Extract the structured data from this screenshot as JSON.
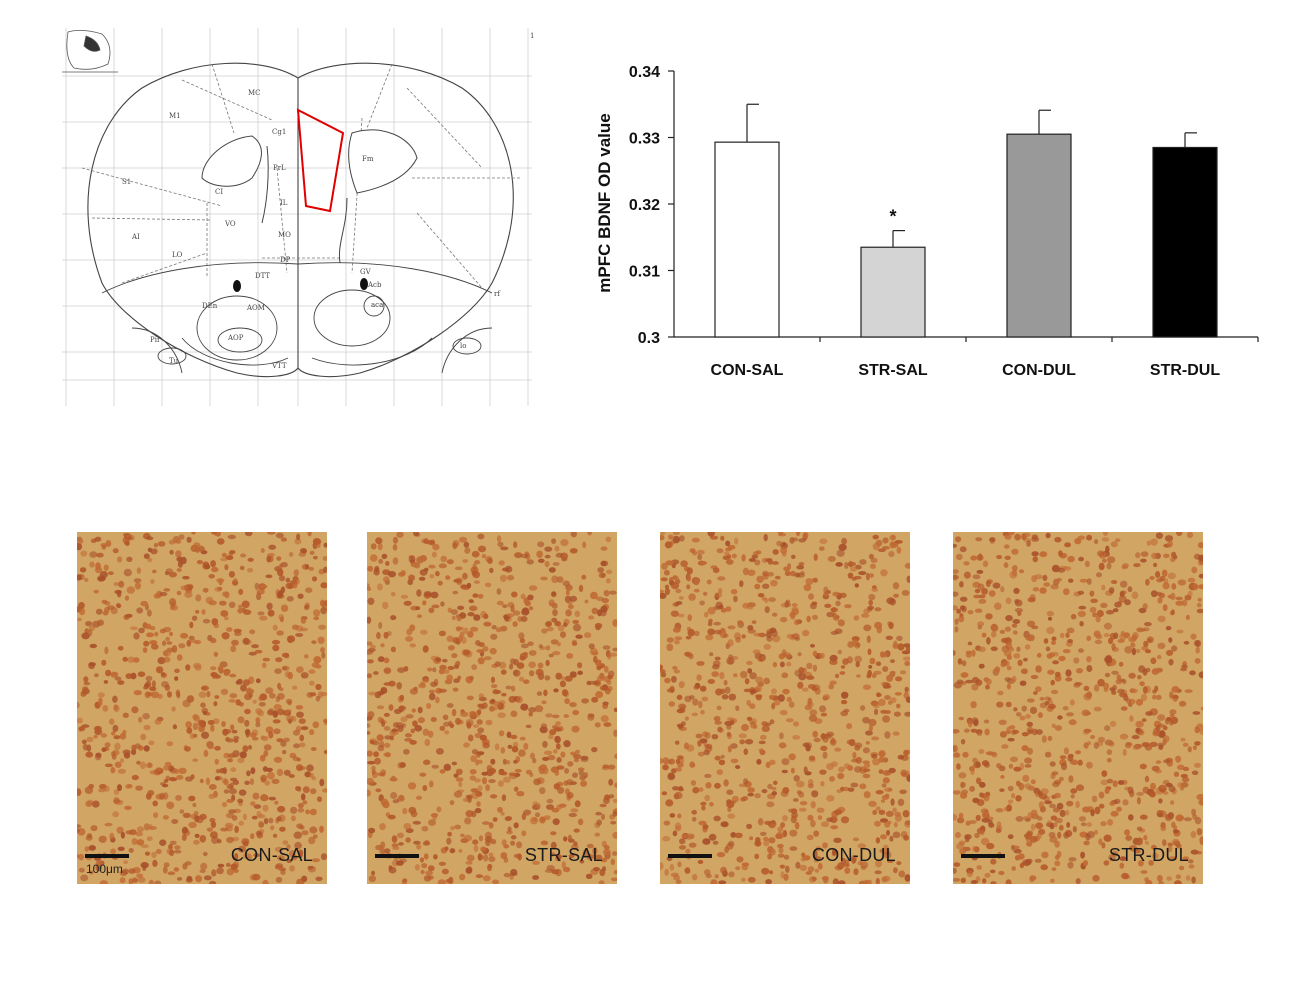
{
  "atlas": {
    "labels": [
      "MC",
      "M1",
      "S1",
      "AI",
      "LO",
      "VO",
      "Cg1",
      "PrL",
      "IL",
      "MO",
      "DP",
      "CI",
      "Fm",
      "DTT",
      "DEn",
      "AOM",
      "AOP",
      "GV",
      "Acb",
      "aca",
      "Pir",
      "Tu",
      "rf",
      "lo",
      "VTT",
      "1"
    ]
  },
  "chart_data": {
    "type": "bar",
    "categories": [
      "CON-SAL",
      "STR-SAL",
      "CON-DUL",
      "STR-DUL"
    ],
    "values": [
      0.3293,
      0.3135,
      0.3305,
      0.3285
    ],
    "errors": [
      0.0057,
      0.0025,
      0.0036,
      0.0022
    ],
    "bar_colors": [
      "#ffffff",
      "#d4d4d4",
      "#999999",
      "#000000"
    ],
    "annotations": [
      {
        "category": "STR-SAL",
        "text": "*"
      }
    ],
    "ylabel": "mPFC BDNF OD value",
    "yticks": [
      "0.3",
      "0.31",
      "0.32",
      "0.33",
      "0.34"
    ],
    "ylim": [
      0.3,
      0.34
    ],
    "grid": false,
    "legend": "none"
  },
  "micrographs": [
    {
      "label": "CON-SAL",
      "scale": "100μm"
    },
    {
      "label": "STR-SAL",
      "scale": ""
    },
    {
      "label": "CON-DUL",
      "scale": ""
    },
    {
      "label": "STR-DUL",
      "scale": ""
    }
  ]
}
